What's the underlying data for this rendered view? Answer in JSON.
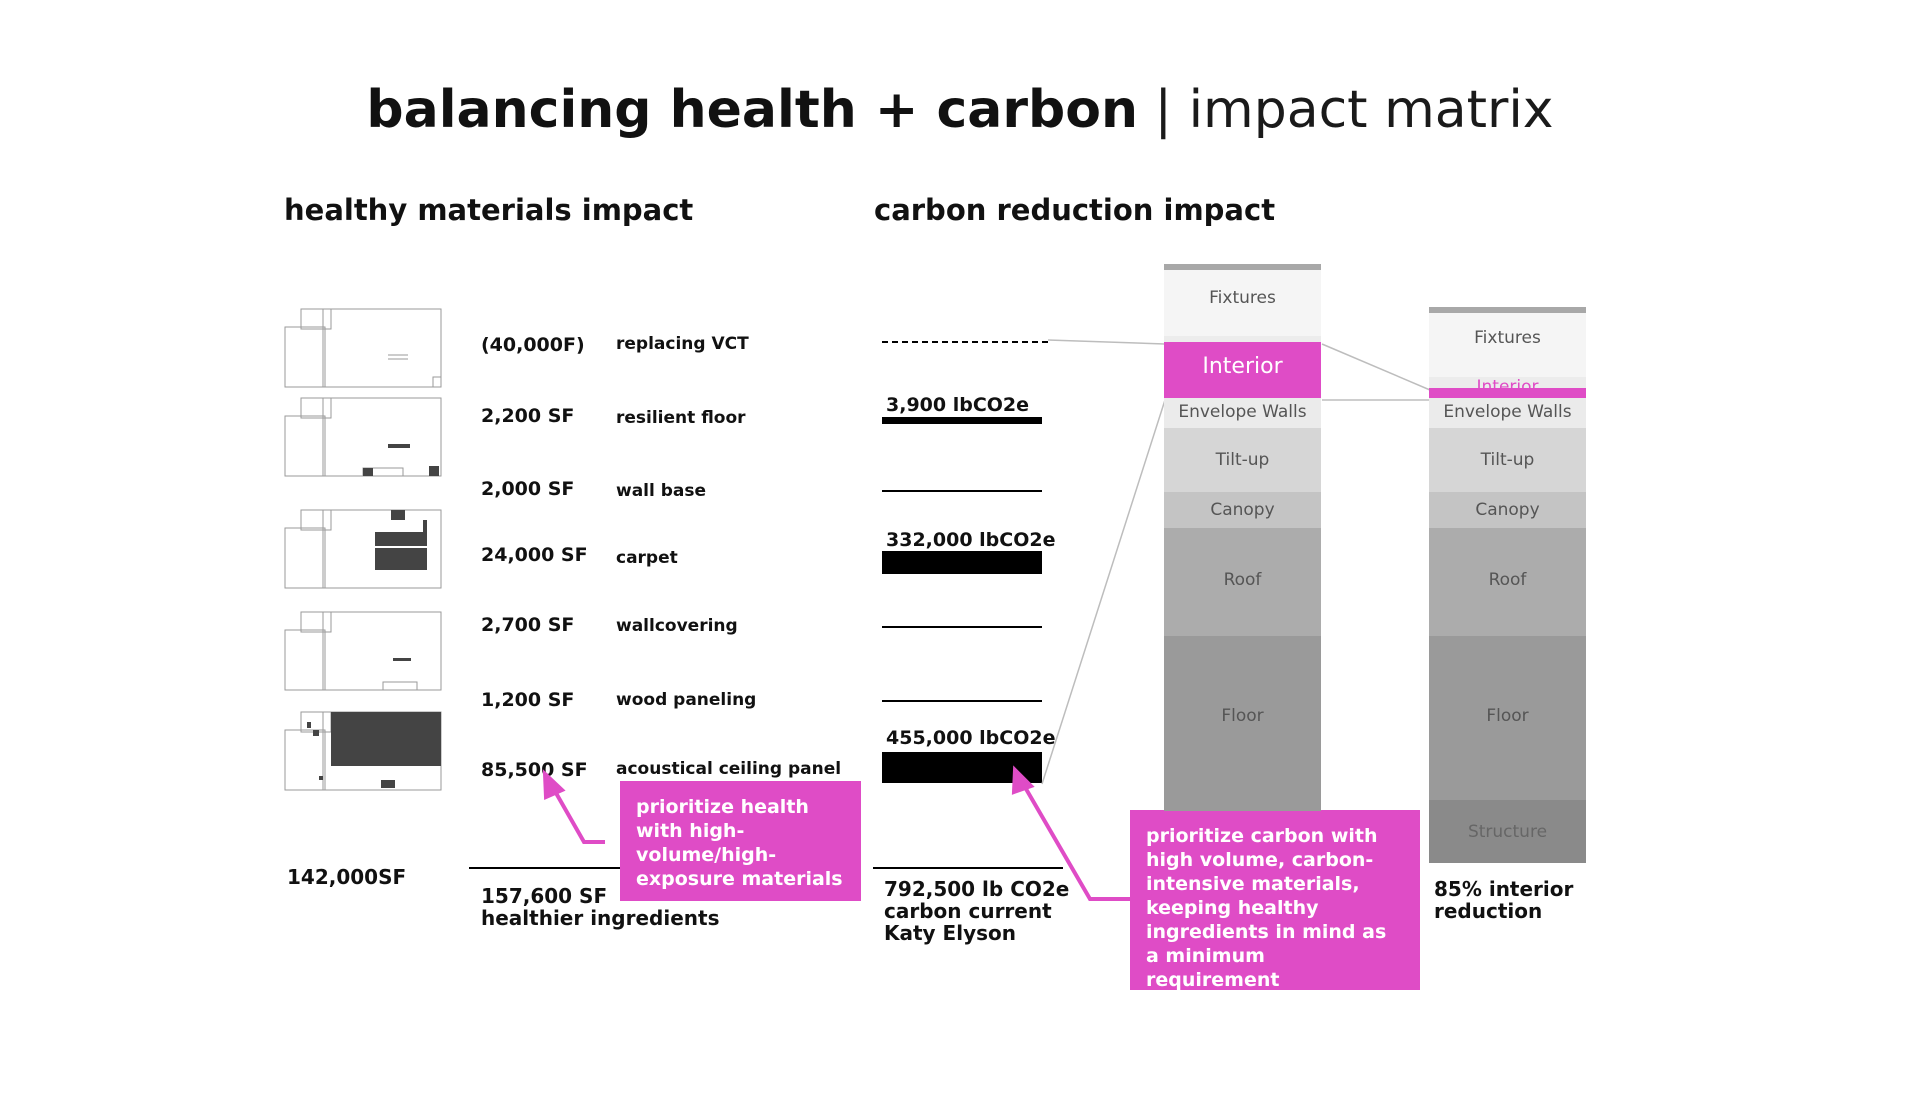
{
  "title": {
    "bold": "balancing health + carbon",
    "separator": " | ",
    "light": "impact matrix"
  },
  "sections": {
    "health": "healthy materials impact",
    "carbon": "carbon reduction impact"
  },
  "materials": [
    {
      "area": "(40,000F)",
      "name": "replacing VCT",
      "carbon": ""
    },
    {
      "area": "2,200 SF",
      "name": "resilient floor",
      "carbon": "3,900 lbCO2e"
    },
    {
      "area": "2,000 SF",
      "name": "wall base",
      "carbon": ""
    },
    {
      "area": "24,000 SF",
      "name": "carpet",
      "carbon": "332,000 lbCO2e"
    },
    {
      "area": "2,700 SF",
      "name": "wallcovering",
      "carbon": ""
    },
    {
      "area": "1,200 SF",
      "name": "wood paneling",
      "carbon": ""
    },
    {
      "area": "85,500 SF",
      "name": "acoustical ceiling panel",
      "carbon": "455,000 lbCO2e"
    }
  ],
  "totals": {
    "building": "142,000SF",
    "healthy_area": "157,600 SF",
    "healthy_label": "healthier ingredients",
    "carbon": "792,500 lb CO2e",
    "carbon_label": "carbon current Katy Elyson",
    "reduction": "85% interior",
    "reduction_label": "reduction"
  },
  "callouts": {
    "health": "prioritize health with high-volume/high-exposure materials",
    "carbon": "prioritize carbon with high volume, carbon-intensive materials, keeping healthy ingredients in mind as a minimum requirement"
  },
  "stack_before": {
    "segments": [
      {
        "label": "Fixtures",
        "color": "#f5f5f5"
      },
      {
        "label": "Interior",
        "color": "#df4cc6"
      },
      {
        "label": "Envelope Walls",
        "color": "#ebebeb"
      },
      {
        "label": "Tilt-up",
        "color": "#d6d6d6"
      },
      {
        "label": "Canopy",
        "color": "#c4c4c4"
      },
      {
        "label": "Roof",
        "color": "#acacac"
      },
      {
        "label": "Floor",
        "color": "#9a9a9a"
      }
    ]
  },
  "stack_after": {
    "segments": [
      {
        "label": "Fixtures",
        "color": "#f5f5f5"
      },
      {
        "label": "Interior",
        "color": "#df4cc6"
      },
      {
        "label": "Envelope Walls",
        "color": "#ebebeb"
      },
      {
        "label": "Tilt-up",
        "color": "#d6d6d6"
      },
      {
        "label": "Canopy",
        "color": "#c4c4c4"
      },
      {
        "label": "Roof",
        "color": "#acacac"
      },
      {
        "label": "Floor",
        "color": "#9a9a9a"
      },
      {
        "label": "Structure",
        "color": "#8a8a8a"
      }
    ]
  },
  "colors": {
    "accent": "#df4cc6"
  }
}
